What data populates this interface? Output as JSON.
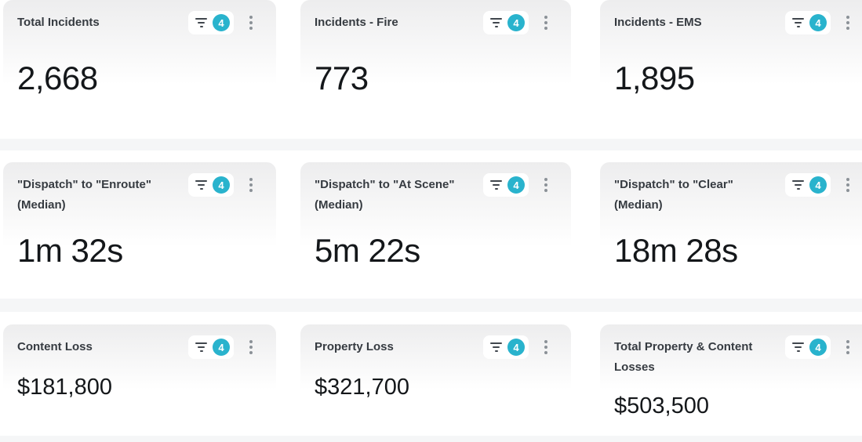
{
  "ui": {
    "filter_badge_count": "4",
    "icons": [
      "funnel-filter-icon",
      "kebab-menu-icon"
    ],
    "colors": {
      "badge_accent": "#29b3cd",
      "card_gradient_top": "#ededee",
      "page_background": "#ffffff",
      "row_gap_band": "#f5f6f7",
      "title_text": "#363b41",
      "value_text": "#14171a"
    }
  },
  "cards": [
    {
      "title": "Total Incidents",
      "value": "2,668"
    },
    {
      "title": "Incidents - Fire",
      "value": "773"
    },
    {
      "title": "Incidents - EMS",
      "value": "1,895"
    },
    {
      "title": "\"Dispatch\" to \"Enroute\" (Median)",
      "value": "1m 32s"
    },
    {
      "title": "\"Dispatch\" to \"At Scene\" (Median)",
      "value": "5m 22s"
    },
    {
      "title": "\"Dispatch\" to \"Clear\" (Median)",
      "value": "18m 28s"
    },
    {
      "title": "Content Loss",
      "value": "$181,800"
    },
    {
      "title": "Property Loss",
      "value": "$321,700"
    },
    {
      "title": "Total Property & Content Losses",
      "value": "$503,500"
    }
  ]
}
